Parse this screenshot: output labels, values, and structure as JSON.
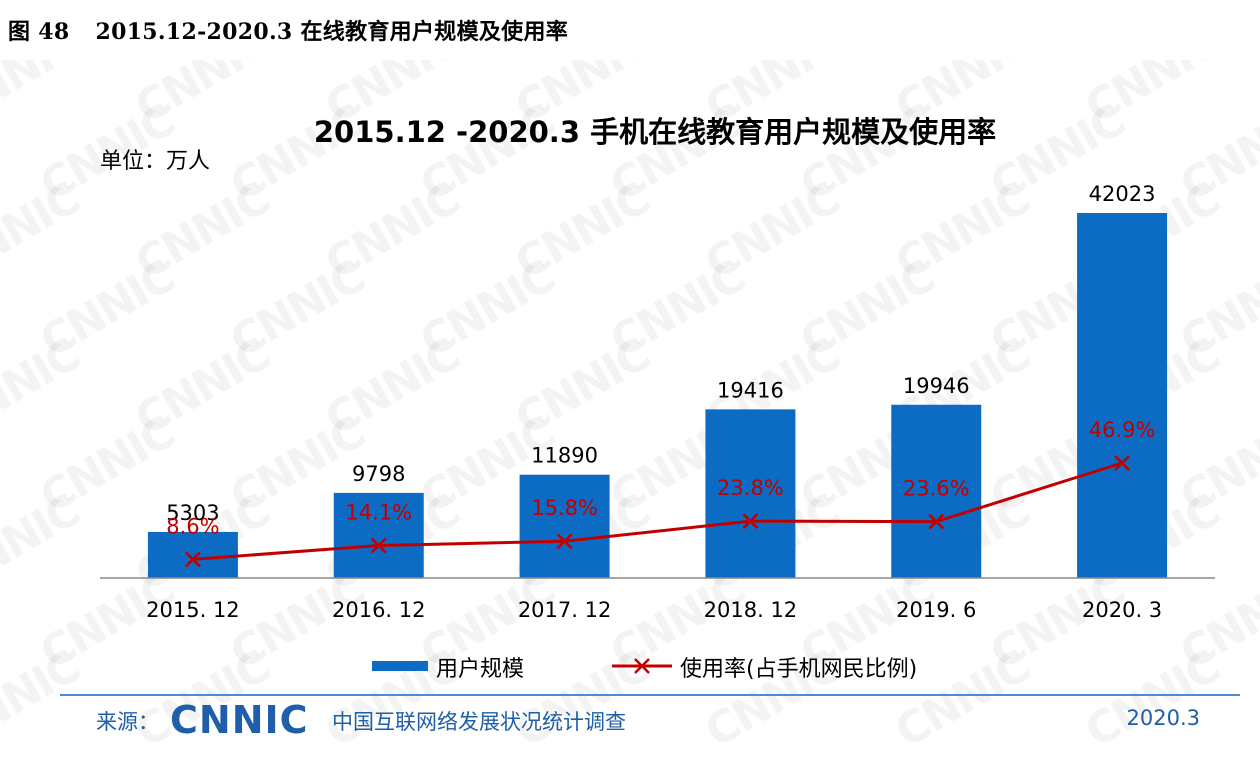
{
  "caption": {
    "figure_number": "图 48",
    "text": "2015.12-2020.3 在线教育用户规模及使用率"
  },
  "watermark": "CNNIC",
  "footer": {
    "source_label": "来源：",
    "logo_text": "CNNIC",
    "organization": "中国互联网络发展状况统计调查",
    "date": "2020.3"
  },
  "chart_data": {
    "type": "bar",
    "title": "2015.12 -2020.3 手机在线教育用户规模及使用率",
    "unit_label": "单位：万人",
    "categories": [
      "2015. 12",
      "2016. 12",
      "2017. 12",
      "2018. 12",
      "2019. 6",
      "2020. 3"
    ],
    "series": [
      {
        "name": "用户规模",
        "type": "bar",
        "color": "#0c6cc4",
        "values": [
          5303,
          9798,
          11890,
          19416,
          19946,
          42023
        ],
        "labels": [
          "5303",
          "9798",
          "11890",
          "19416",
          "19946",
          "42023"
        ]
      },
      {
        "name": "使用率(占手机网民比例)",
        "type": "line",
        "color": "#c00000",
        "marker": "x",
        "values": [
          8.6,
          14.1,
          15.8,
          23.8,
          23.6,
          46.9
        ],
        "labels": [
          "8.6%",
          "14.1%",
          "15.8%",
          "23.8%",
          "23.6%",
          "46.9%"
        ]
      }
    ],
    "legend_position": "bottom-center",
    "grid": false,
    "y_axis_visible": false
  }
}
